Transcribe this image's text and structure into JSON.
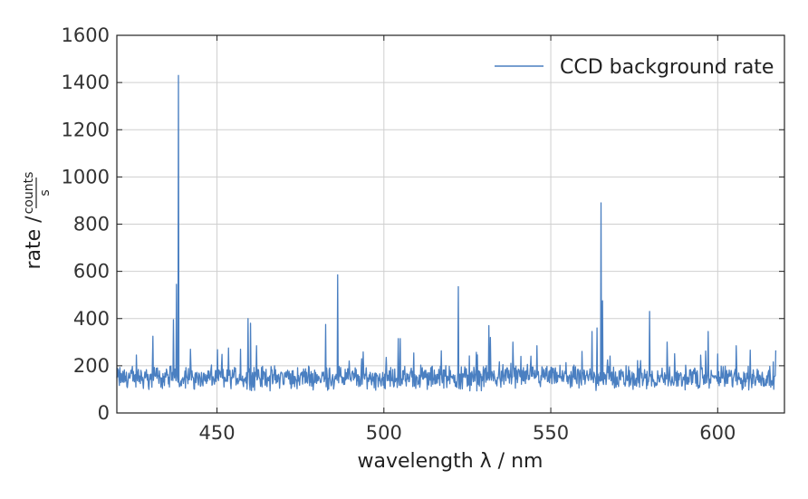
{
  "chart_data": {
    "type": "line",
    "title": "",
    "xlabel": "wavelength λ / nm",
    "ylabel": {
      "main": "rate /",
      "numerator": "counts",
      "denominator": "s"
    },
    "xlim": [
      420,
      620
    ],
    "ylim": [
      0,
      1600
    ],
    "xticks": [
      450,
      500,
      550,
      600
    ],
    "yticks": [
      0,
      200,
      400,
      600,
      800,
      1000,
      1200,
      1400,
      1600
    ],
    "grid": true,
    "legend_position": "top-right",
    "series": [
      {
        "name": "CCD background rate",
        "color": "#4a7fc1",
        "baseline": {
          "x_start": 420.0,
          "x_end": 617.5,
          "x_step": 0.15,
          "typical_min": 90,
          "typical_max": 210
        },
        "peaks": [
          {
            "x": 430.8,
            "y": 325
          },
          {
            "x": 436.9,
            "y": 395
          },
          {
            "x": 437.9,
            "y": 545
          },
          {
            "x": 438.4,
            "y": 1430
          },
          {
            "x": 442.0,
            "y": 270
          },
          {
            "x": 453.5,
            "y": 275
          },
          {
            "x": 457.0,
            "y": 270
          },
          {
            "x": 459.3,
            "y": 400
          },
          {
            "x": 460.1,
            "y": 380
          },
          {
            "x": 461.8,
            "y": 285
          },
          {
            "x": 482.6,
            "y": 375
          },
          {
            "x": 486.1,
            "y": 585
          },
          {
            "x": 504.3,
            "y": 315
          },
          {
            "x": 504.9,
            "y": 315
          },
          {
            "x": 522.3,
            "y": 535
          },
          {
            "x": 531.4,
            "y": 370
          },
          {
            "x": 531.9,
            "y": 320
          },
          {
            "x": 538.7,
            "y": 300
          },
          {
            "x": 545.9,
            "y": 285
          },
          {
            "x": 562.4,
            "y": 345
          },
          {
            "x": 563.9,
            "y": 360
          },
          {
            "x": 565.0,
            "y": 890
          },
          {
            "x": 565.5,
            "y": 475
          },
          {
            "x": 579.6,
            "y": 430
          },
          {
            "x": 584.9,
            "y": 300
          },
          {
            "x": 597.1,
            "y": 345
          },
          {
            "x": 600.0,
            "y": 250
          },
          {
            "x": 605.5,
            "y": 285
          }
        ]
      }
    ]
  }
}
